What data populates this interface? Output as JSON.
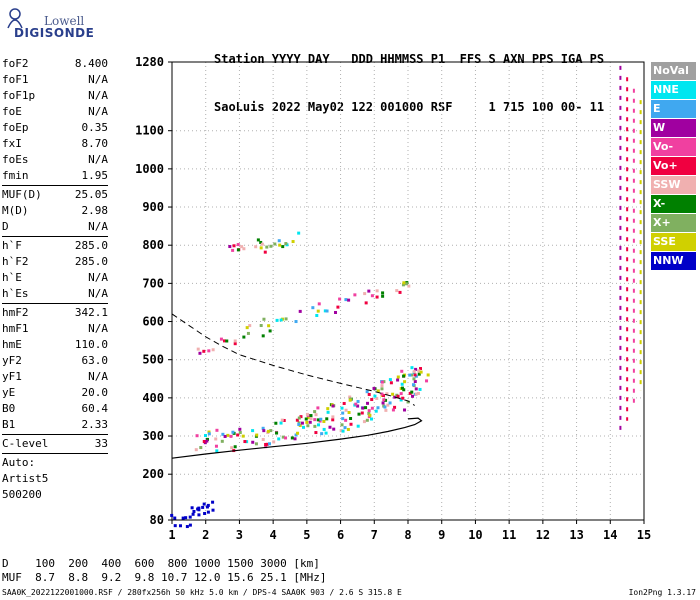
{
  "logo": {
    "top": "Lowell",
    "brand": "DIGISONDE"
  },
  "header": {
    "line1": "Station YYYY DAY   DDD HHMMSS P1  FFS S AXN PPS IGA PS",
    "line2": "SaoLuis 2022 May02 122 001000 RSF     1 715 100 00- 11"
  },
  "params": {
    "group1": [
      {
        "k": "foF2",
        "v": "8.400"
      },
      {
        "k": "foF1",
        "v": "N/A"
      },
      {
        "k": "foF1p",
        "v": "N/A"
      },
      {
        "k": "foE",
        "v": "N/A"
      },
      {
        "k": "foEp",
        "v": "0.35"
      },
      {
        "k": "fxI",
        "v": "8.70"
      },
      {
        "k": "foEs",
        "v": "N/A"
      },
      {
        "k": "fmin",
        "v": "1.95"
      }
    ],
    "group2": [
      {
        "k": "MUF(D)",
        "v": "25.05"
      },
      {
        "k": "M(D)",
        "v": "2.98"
      },
      {
        "k": "D",
        "v": "N/A"
      }
    ],
    "group3": [
      {
        "k": "h`F",
        "v": "285.0"
      },
      {
        "k": "h`F2",
        "v": "285.0"
      },
      {
        "k": "h`E",
        "v": "N/A"
      },
      {
        "k": "h`Es",
        "v": "N/A"
      }
    ],
    "group4": [
      {
        "k": "hmF2",
        "v": "342.1"
      },
      {
        "k": "hmF1",
        "v": "N/A"
      },
      {
        "k": "hmE",
        "v": "110.0"
      },
      {
        "k": "yF2",
        "v": "63.0"
      },
      {
        "k": "yF1",
        "v": "N/A"
      },
      {
        "k": "yE",
        "v": "20.0"
      },
      {
        "k": "B0",
        "v": "60.4"
      },
      {
        "k": "B1",
        "v": "2.33"
      }
    ],
    "group5": [
      {
        "k": "C-level",
        "v": "33"
      }
    ],
    "auto": [
      "Auto:",
      "Artist5",
      "500200"
    ]
  },
  "muf_table": {
    "row1": "D    100  200  400  600  800 1000 1500 3000 [km]",
    "row2": "MUF  8.7  8.8  9.2  9.8 10.7 12.0 15.6 25.1 [MHz]"
  },
  "footer": "SAA0K_2022122001000.RSF / 280fx256h 50 kHz 5.0 km / DPS-4 SAA0K 903 / 2.6 S 315.8 E",
  "version": "Ion2Png 1.3.17",
  "legend": [
    {
      "label": "NoVal",
      "color": "#a0a0a0"
    },
    {
      "label": "NNE",
      "color": "#00e6f0"
    },
    {
      "label": "E",
      "color": "#40a8f0"
    },
    {
      "label": "W",
      "color": "#a000a0"
    },
    {
      "label": "Vo-",
      "color": "#f040a0"
    },
    {
      "label": "Vo+",
      "color": "#f00040"
    },
    {
      "label": "SSW",
      "color": "#f0b0b0"
    },
    {
      "label": "X-",
      "color": "#008000"
    },
    {
      "label": "X+",
      "color": "#80b060"
    },
    {
      "label": "SSE",
      "color": "#d0d000"
    },
    {
      "label": "NNW",
      "color": "#0000c8"
    }
  ],
  "chart_data": {
    "type": "scatter",
    "xlim": [
      1,
      15
    ],
    "ylim": [
      80,
      1280
    ],
    "x_ticks": [
      1,
      2,
      3,
      4,
      5,
      6,
      7,
      8,
      9,
      10,
      11,
      12,
      13,
      14,
      15
    ],
    "y_ticks": [
      80,
      200,
      300,
      400,
      500,
      600,
      700,
      800,
      900,
      1000,
      1100,
      1280
    ],
    "grid": "dotted",
    "legend_position": "right",
    "profile_solid": [
      [
        1.0,
        242
      ],
      [
        2.0,
        253
      ],
      [
        3.0,
        263
      ],
      [
        4.0,
        272
      ],
      [
        5.0,
        281
      ],
      [
        6.0,
        292
      ],
      [
        6.8,
        302
      ],
      [
        7.4,
        312
      ],
      [
        7.9,
        322
      ],
      [
        8.2,
        330
      ],
      [
        8.4,
        340
      ],
      [
        8.3,
        347
      ],
      [
        8.0,
        345
      ]
    ],
    "profile_dashed": [
      [
        1.0,
        620
      ],
      [
        1.5,
        590
      ],
      [
        2.0,
        560
      ],
      [
        2.5,
        535
      ],
      [
        3.0,
        513
      ],
      [
        4.0,
        485
      ],
      [
        5.0,
        460
      ],
      [
        6.0,
        438
      ],
      [
        7.0,
        417
      ],
      [
        7.5,
        405
      ],
      [
        8.0,
        392
      ],
      [
        8.2,
        380
      ]
    ],
    "traces": [
      {
        "name": "F2 O-trace",
        "points": [
          [
            1.95,
            290
          ],
          [
            2.5,
            293
          ],
          [
            3.0,
            298
          ],
          [
            3.5,
            303
          ],
          [
            4.0,
            310
          ],
          [
            4.5,
            318
          ],
          [
            5.0,
            326
          ],
          [
            5.5,
            335
          ],
          [
            6.0,
            345
          ],
          [
            6.5,
            358
          ],
          [
            7.0,
            372
          ],
          [
            7.3,
            383
          ],
          [
            7.6,
            398
          ],
          [
            7.9,
            420
          ],
          [
            8.1,
            440
          ],
          [
            8.3,
            455
          ]
        ]
      },
      {
        "name": "F2 upper",
        "points": [
          [
            5.0,
            345
          ],
          [
            5.5,
            362
          ],
          [
            6.0,
            378
          ],
          [
            6.5,
            395
          ],
          [
            7.0,
            420
          ],
          [
            7.5,
            445
          ],
          [
            7.9,
            470
          ]
        ]
      },
      {
        "name": "second hop",
        "points": [
          [
            2.0,
            530
          ],
          [
            2.5,
            545
          ],
          [
            3.0,
            560
          ],
          [
            3.5,
            578
          ],
          [
            4.0,
            595
          ],
          [
            4.5,
            610
          ],
          [
            5.0,
            625
          ],
          [
            5.5,
            640
          ],
          [
            6.0,
            655
          ],
          [
            6.5,
            668
          ],
          [
            7.0,
            678
          ],
          [
            7.5,
            688
          ],
          [
            8.0,
            695
          ]
        ]
      },
      {
        "name": "third hop",
        "points": [
          [
            2.9,
            790
          ],
          [
            3.2,
            795
          ],
          [
            3.5,
            800
          ],
          [
            3.8,
            806
          ],
          [
            4.1,
            812
          ],
          [
            4.4,
            820
          ]
        ]
      },
      {
        "name": "low echoes",
        "points": [
          [
            1.1,
            82
          ],
          [
            1.3,
            80
          ],
          [
            1.6,
            100
          ],
          [
            1.8,
            110
          ],
          [
            2.0,
            105
          ],
          [
            2.1,
            115
          ]
        ]
      }
    ]
  }
}
